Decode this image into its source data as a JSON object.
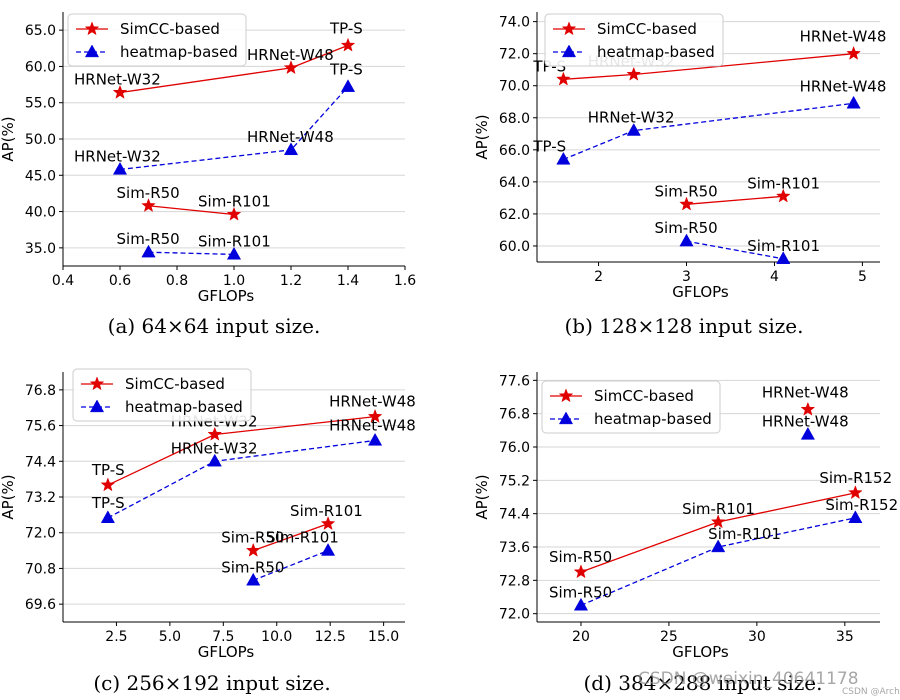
{
  "chart_data": [
    {
      "type": "line",
      "caption": "(a) 64×64 input size.",
      "xlabel": "GFLOPs",
      "ylabel": "AP(%)",
      "xlim": [
        0.4,
        1.6
      ],
      "ylim": [
        32.5,
        67.5
      ],
      "xticks": [
        0.4,
        0.6,
        0.8,
        1.0,
        1.2,
        1.4,
        1.6
      ],
      "xtick_labels": [
        "0.4",
        "0.6",
        "0.8",
        "1.0",
        "1.2",
        "1.4",
        "1.6"
      ],
      "yticks": [
        35.0,
        40.0,
        45.0,
        50.0,
        55.0,
        60.0,
        65.0
      ],
      "ytick_labels": [
        "35.0",
        "40.0",
        "45.0",
        "50.0",
        "55.0",
        "60.0",
        "65.0"
      ],
      "legend": [
        "SimCC-based",
        "heatmap-based"
      ],
      "legend_position": "upper-left",
      "series": [
        {
          "name": "SimCC-based",
          "color": "#e00000",
          "style": "solid",
          "marker": "star",
          "segments": [
            [
              {
                "x": 0.6,
                "y": 56.4,
                "label": "HRNet-W32"
              },
              {
                "x": 1.2,
                "y": 59.8,
                "label": "HRNet-W48"
              },
              {
                "x": 1.4,
                "y": 62.9,
                "label": "TP-S"
              }
            ],
            [
              {
                "x": 0.7,
                "y": 40.8,
                "label": "Sim-R50"
              },
              {
                "x": 1.0,
                "y": 39.6,
                "label": "Sim-R101"
              }
            ]
          ]
        },
        {
          "name": "heatmap-based",
          "color": "#0000dd",
          "style": "dashed",
          "marker": "triangle",
          "segments": [
            [
              {
                "x": 0.6,
                "y": 45.8,
                "label": "HRNet-W32"
              },
              {
                "x": 1.2,
                "y": 48.5,
                "label": "HRNet-W48"
              },
              {
                "x": 1.4,
                "y": 57.2,
                "label": "TP-S"
              }
            ],
            [
              {
                "x": 0.7,
                "y": 34.4,
                "label": "Sim-R50"
              },
              {
                "x": 1.0,
                "y": 34.1,
                "label": "Sim-R101"
              }
            ]
          ]
        }
      ]
    },
    {
      "type": "line",
      "caption": "(b) 128×128 input size.",
      "xlabel": "GFLOPs",
      "ylabel": "AP(%)",
      "xlim": [
        1.3,
        5.2
      ],
      "ylim": [
        59.0,
        74.6
      ],
      "xticks": [
        2,
        3,
        4,
        5
      ],
      "xtick_labels": [
        "2",
        "3",
        "4",
        "5"
      ],
      "yticks": [
        60.0,
        62.0,
        64.0,
        66.0,
        68.0,
        70.0,
        72.0,
        74.0
      ],
      "ytick_labels": [
        "60.0",
        "62.0",
        "64.0",
        "66.0",
        "68.0",
        "70.0",
        "72.0",
        "74.0"
      ],
      "legend": [
        "SimCC-based",
        "heatmap-based"
      ],
      "legend_position": "upper-left",
      "series": [
        {
          "name": "SimCC-based",
          "color": "#e00000",
          "style": "solid",
          "marker": "star",
          "segments": [
            [
              {
                "x": 1.6,
                "y": 70.4,
                "label": "TP-S"
              },
              {
                "x": 2.4,
                "y": 70.7,
                "label": "HRNet-W32"
              },
              {
                "x": 4.9,
                "y": 72.0,
                "label": "HRNet-W48"
              }
            ],
            [
              {
                "x": 3.0,
                "y": 62.6,
                "label": "Sim-R50"
              },
              {
                "x": 4.1,
                "y": 63.1,
                "label": "Sim-R101"
              }
            ]
          ]
        },
        {
          "name": "heatmap-based",
          "color": "#0000dd",
          "style": "dashed",
          "marker": "triangle",
          "segments": [
            [
              {
                "x": 1.6,
                "y": 65.4,
                "label": "TP-S"
              },
              {
                "x": 2.4,
                "y": 67.2,
                "label": "HRNet-W32"
              },
              {
                "x": 4.9,
                "y": 68.9,
                "label": "HRNet-W48"
              }
            ],
            [
              {
                "x": 3.0,
                "y": 60.3,
                "label": "Sim-R50"
              },
              {
                "x": 4.1,
                "y": 59.2,
                "label": "Sim-R101"
              }
            ]
          ]
        }
      ]
    },
    {
      "type": "line",
      "caption": "(c) 256×192 input size.",
      "xlabel": "GFLOPs",
      "ylabel": "AP(%)",
      "xlim": [
        0.0,
        16.0
      ],
      "ylim": [
        69.0,
        77.4
      ],
      "xticks": [
        2.5,
        5.0,
        7.5,
        10.0,
        12.5,
        15.0
      ],
      "xtick_labels": [
        "2.5",
        "5.0",
        "7.5",
        "10.0",
        "12.5",
        "15.0"
      ],
      "yticks": [
        69.6,
        70.8,
        72.0,
        73.2,
        74.4,
        75.6,
        76.8
      ],
      "ytick_labels": [
        "69.6",
        "70.8",
        "72.0",
        "73.2",
        "74.4",
        "75.6",
        "76.8"
      ],
      "legend": [
        "SimCC-based",
        "heatmap-based"
      ],
      "legend_position": "upper-left",
      "series": [
        {
          "name": "SimCC-based",
          "color": "#e00000",
          "style": "solid",
          "marker": "star",
          "segments": [
            [
              {
                "x": 2.1,
                "y": 73.6,
                "label": "TP-S"
              },
              {
                "x": 7.1,
                "y": 75.3,
                "label": "HRNet-W32"
              },
              {
                "x": 14.6,
                "y": 75.9,
                "label": "HRNet-W48"
              }
            ],
            [
              {
                "x": 8.9,
                "y": 71.4,
                "label": "Sim-R50"
              },
              {
                "x": 12.4,
                "y": 72.3,
                "label": "Sim-R101"
              }
            ]
          ]
        },
        {
          "name": "heatmap-based",
          "color": "#0000dd",
          "style": "dashed",
          "marker": "triangle",
          "segments": [
            [
              {
                "x": 2.1,
                "y": 72.5,
                "label": "TP-S"
              },
              {
                "x": 7.1,
                "y": 74.4,
                "label": "HRNet-W32"
              },
              {
                "x": 14.6,
                "y": 75.1,
                "label": "HRNet-W48"
              }
            ],
            [
              {
                "x": 8.9,
                "y": 70.4,
                "label": "Sim-R50"
              },
              {
                "x": 12.4,
                "y": 71.4,
                "label": "Sim-R101"
              }
            ]
          ]
        }
      ]
    },
    {
      "type": "line",
      "caption": "(d) 384×288 input size.",
      "xlabel": "GFLOPs",
      "ylabel": "AP(%)",
      "xlim": [
        17.5,
        37.0
      ],
      "ylim": [
        71.8,
        77.8
      ],
      "xticks": [
        20,
        25,
        30,
        35
      ],
      "xtick_labels": [
        "20",
        "25",
        "30",
        "35"
      ],
      "yticks": [
        72.0,
        72.8,
        73.6,
        74.4,
        75.2,
        76.0,
        76.8,
        77.6
      ],
      "ytick_labels": [
        "72.0",
        "72.8",
        "73.6",
        "74.4",
        "75.2",
        "76.0",
        "76.8",
        "77.6"
      ],
      "legend": [
        "SimCC-based",
        "heatmap-based"
      ],
      "legend_position": "upper-left",
      "series": [
        {
          "name": "SimCC-based",
          "color": "#e00000",
          "style": "solid",
          "marker": "star",
          "segments": [
            [
              {
                "x": 20.0,
                "y": 73.0,
                "label": "Sim-R50"
              },
              {
                "x": 27.8,
                "y": 74.2,
                "label": "Sim-R101"
              },
              {
                "x": 35.6,
                "y": 74.9,
                "label": "Sim-R152"
              }
            ],
            [
              {
                "x": 32.9,
                "y": 76.9,
                "label": "HRNet-W48"
              }
            ]
          ]
        },
        {
          "name": "heatmap-based",
          "color": "#0000dd",
          "style": "dashed",
          "marker": "triangle",
          "segments": [
            [
              {
                "x": 20.0,
                "y": 72.2,
                "label": "Sim-R50"
              },
              {
                "x": 27.8,
                "y": 73.6,
                "label": "Sim-R101"
              },
              {
                "x": 35.6,
                "y": 74.3,
                "label": "Sim-R152"
              }
            ],
            [
              {
                "x": 32.9,
                "y": 76.3,
                "label": "HRNet-W48"
              }
            ]
          ]
        }
      ]
    }
  ],
  "watermark": {
    "text": "CSDN @weixin_40641178",
    "small_text": "CSDN @Arch"
  }
}
